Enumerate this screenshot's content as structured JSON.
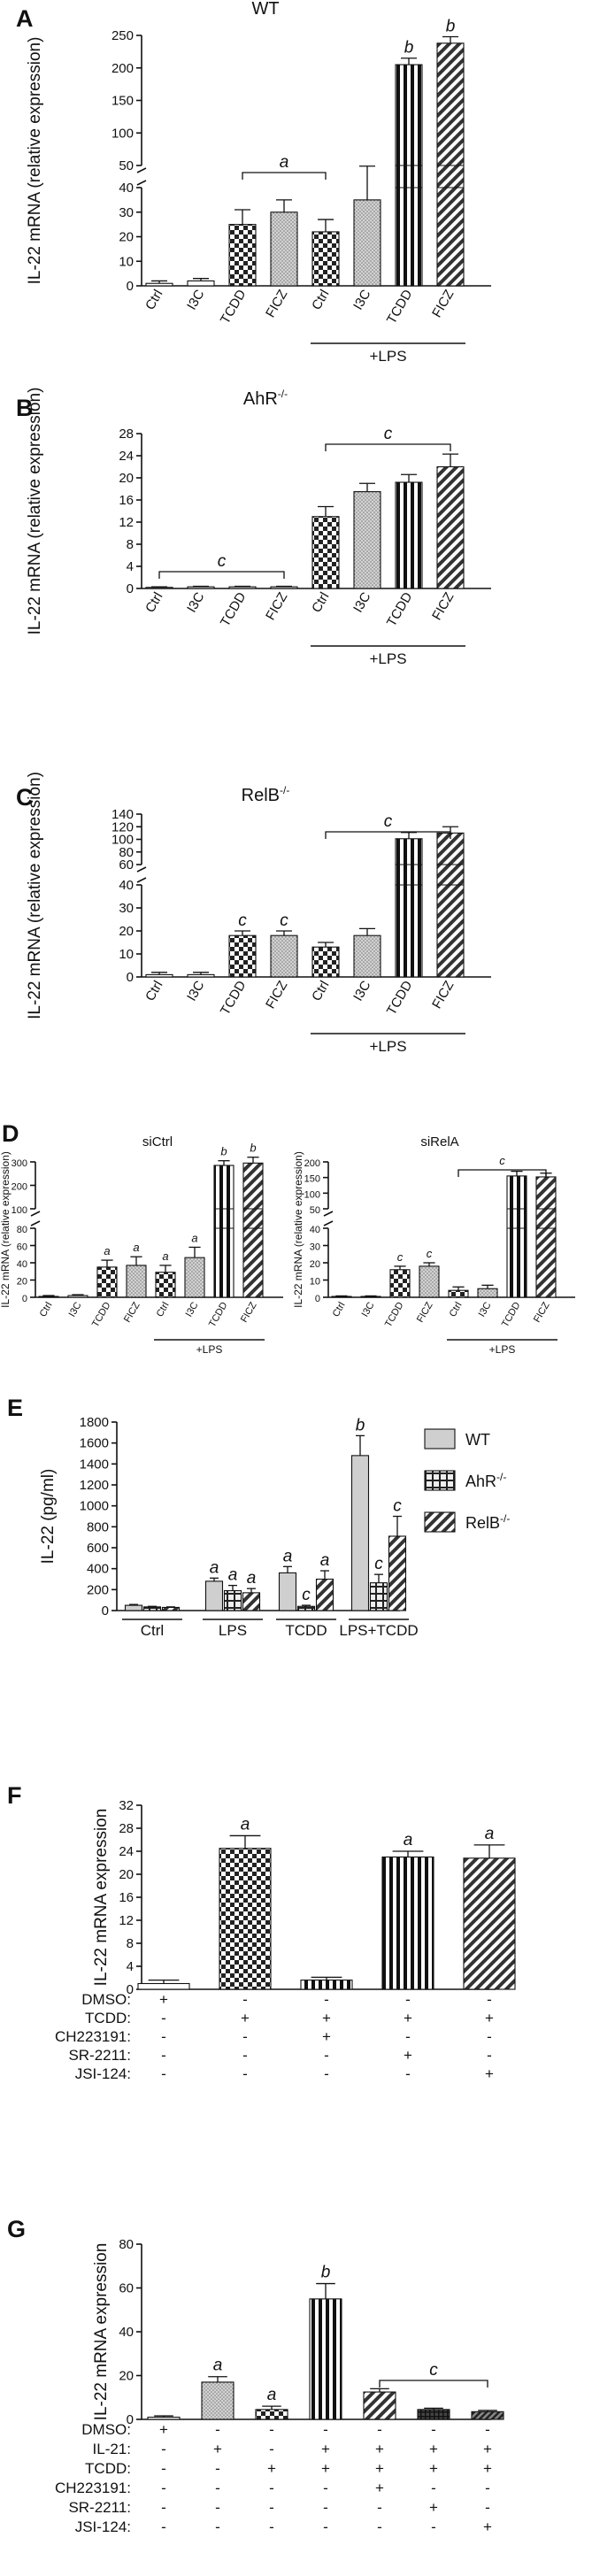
{
  "chart_data": [
    {
      "panel": "A",
      "title": "WT",
      "type": "bar",
      "ylabel": "IL-22 mRNA (relative expression)",
      "axis_break": [
        40,
        50
      ],
      "yticks_lower": [
        0,
        10,
        20,
        30,
        40
      ],
      "yticks_upper": [
        50,
        100,
        150,
        200,
        250
      ],
      "categories": [
        "Ctrl",
        "I3C",
        "TCDD",
        "FICZ",
        "Ctrl",
        "I3C",
        "TCDD",
        "FICZ"
      ],
      "values": [
        1,
        2,
        25,
        30,
        22,
        35,
        205,
        238
      ],
      "errors": [
        1,
        1,
        6,
        5,
        5,
        14,
        10,
        10
      ],
      "patterns": [
        "white",
        "white",
        "check",
        "dots",
        "check",
        "dots",
        "vstripe",
        "diag"
      ],
      "group_label": "+LPS",
      "annotations": [
        {
          "text": "a",
          "type": "bracket",
          "from": 2,
          "to": 4
        },
        {
          "text": "b",
          "bar": 6
        },
        {
          "text": "b",
          "bar": 7
        }
      ]
    },
    {
      "panel": "B",
      "title": "AhR",
      "title_sup": "-/-",
      "type": "bar",
      "ylabel": "IL-22 mRNA (relative expression)",
      "yticks": [
        0,
        4,
        8,
        12,
        16,
        20,
        24,
        28
      ],
      "ylim": [
        0,
        28
      ],
      "categories": [
        "Ctrl",
        "I3C",
        "TCDD",
        "FICZ",
        "Ctrl",
        "I3C",
        "TCDD",
        "FICZ"
      ],
      "values": [
        0.2,
        0.3,
        0.3,
        0.3,
        13,
        17.5,
        19.2,
        22
      ],
      "errors": [
        0.1,
        0.1,
        0.1,
        0.1,
        1.8,
        1.5,
        1.4,
        2.3
      ],
      "patterns": [
        "white",
        "white",
        "white",
        "white",
        "check",
        "dots",
        "vstripe",
        "diag"
      ],
      "group_label": "+LPS",
      "annotations": [
        {
          "text": "c",
          "type": "bracket",
          "from": 0,
          "to": 3
        },
        {
          "text": "c",
          "type": "bracket",
          "from": 4,
          "to": 7
        }
      ]
    },
    {
      "panel": "C",
      "title": "RelB",
      "title_sup": "-/-",
      "type": "bar",
      "ylabel": "IL-22 mRNA (relative expression)",
      "axis_break": [
        40,
        60
      ],
      "yticks_lower": [
        0,
        10,
        20,
        30,
        40
      ],
      "yticks_upper": [
        60,
        80,
        100,
        120,
        140
      ],
      "categories": [
        "Ctrl",
        "I3C",
        "TCDD",
        "FICZ",
        "Ctrl",
        "I3C",
        "TCDD",
        "FICZ"
      ],
      "values": [
        1,
        1,
        18,
        18,
        13,
        18,
        101,
        110
      ],
      "errors": [
        1,
        1,
        2,
        2,
        2,
        3,
        10,
        10
      ],
      "patterns": [
        "white",
        "white",
        "check",
        "dots",
        "check",
        "dots",
        "vstripe",
        "diag"
      ],
      "group_label": "+LPS",
      "annotations": [
        {
          "text": "c",
          "bar": 2
        },
        {
          "text": "c",
          "bar": 3
        },
        {
          "text": "c",
          "type": "bracket",
          "from": 4,
          "to": 7
        }
      ]
    },
    {
      "panel": "D",
      "title": "siCtrl",
      "type": "bar",
      "ylabel": "IL-22 mRNA (relative expression)",
      "axis_break": [
        80,
        100
      ],
      "yticks_lower": [
        0,
        20,
        40,
        60,
        80
      ],
      "yticks_upper": [
        100,
        200,
        300
      ],
      "categories": [
        "Ctrl",
        "I3C",
        "TCDD",
        "FICZ",
        "Ctrl",
        "I3C",
        "TCDD",
        "FICZ"
      ],
      "values": [
        1,
        2,
        35,
        37,
        29,
        46,
        285,
        295
      ],
      "errors": [
        1,
        1,
        8,
        10,
        8,
        12,
        20,
        25
      ],
      "patterns": [
        "white",
        "white",
        "check",
        "dots",
        "check",
        "dots",
        "vstripe",
        "diag"
      ],
      "group_label": "+LPS",
      "annotations": [
        {
          "text": "a",
          "bar": 2
        },
        {
          "text": "a",
          "bar": 3
        },
        {
          "text": "a",
          "bar": 4
        },
        {
          "text": "a",
          "bar": 5
        },
        {
          "text": "b",
          "bar": 6
        },
        {
          "text": "b",
          "bar": 7
        }
      ]
    },
    {
      "panel": "D",
      "title": "siRelA",
      "type": "bar",
      "ylabel": "IL-22 mRNA (relative expression)",
      "axis_break": [
        40,
        50
      ],
      "yticks_lower": [
        0,
        10,
        20,
        30,
        40
      ],
      "yticks_upper": [
        50,
        100,
        150,
        200
      ],
      "categories": [
        "Ctrl",
        "I3C",
        "TCDD",
        "FICZ",
        "Ctrl",
        "I3C",
        "TCDD",
        "FICZ"
      ],
      "values": [
        0.5,
        0.5,
        16,
        18,
        4,
        5,
        155,
        152
      ],
      "errors": [
        0.3,
        0.3,
        2,
        2,
        2,
        2,
        15,
        12
      ],
      "patterns": [
        "white",
        "white",
        "check",
        "dots",
        "check",
        "dots",
        "vstripe",
        "diag"
      ],
      "group_label": "+LPS",
      "annotations": [
        {
          "text": "c",
          "bar": 2
        },
        {
          "text": "c",
          "bar": 3
        },
        {
          "text": "c",
          "type": "bracket",
          "from": 4,
          "to": 7
        }
      ]
    },
    {
      "panel": "E",
      "type": "bar",
      "ylabel": "IL-22 (pg/ml)",
      "yticks": [
        0,
        200,
        400,
        600,
        800,
        1000,
        1200,
        1400,
        1600,
        1800
      ],
      "ylim": [
        0,
        1800
      ],
      "categories": [
        "Ctrl",
        "LPS",
        "TCDD",
        "LPS+TCDD"
      ],
      "series": [
        {
          "name": "WT",
          "pattern": "gray",
          "values": [
            50,
            280,
            360,
            1480
          ],
          "errors": [
            8,
            30,
            60,
            190
          ],
          "sig": [
            "",
            "a",
            "a",
            "b"
          ]
        },
        {
          "name": "AhR",
          "sup": "-/-",
          "pattern": "grid",
          "values": [
            35,
            190,
            40,
            265
          ],
          "errors": [
            5,
            50,
            10,
            80
          ],
          "sig": [
            "",
            "a",
            "c",
            "c"
          ]
        },
        {
          "name": "RelB",
          "sup": "-/-",
          "pattern": "diag",
          "values": [
            30,
            170,
            300,
            710
          ],
          "errors": [
            5,
            40,
            80,
            190
          ],
          "sig": [
            "",
            "a",
            "a",
            "c"
          ]
        }
      ],
      "legend": "right"
    },
    {
      "panel": "F",
      "type": "bar",
      "ylabel": "IL-22 mRNA expression",
      "yticks": [
        0,
        4,
        8,
        12,
        16,
        20,
        24,
        28,
        32
      ],
      "ylim": [
        0,
        32
      ],
      "values": [
        1,
        24.5,
        1.6,
        23,
        22.8
      ],
      "errors": [
        0.6,
        2.2,
        0.5,
        1,
        2.3
      ],
      "patterns": [
        "white",
        "check",
        "vstripe",
        "vstripe",
        "diag"
      ],
      "sig": [
        "",
        "a",
        "",
        "a",
        "a"
      ],
      "treatments": [
        {
          "label": "DMSO:",
          "marks": [
            "+",
            "-",
            "-",
            "-",
            "-"
          ]
        },
        {
          "label": "TCDD:",
          "marks": [
            "-",
            "+",
            "+",
            "+",
            "+"
          ]
        },
        {
          "label": "CH223191:",
          "marks": [
            "-",
            "-",
            "+",
            "-",
            "-"
          ]
        },
        {
          "label": "SR-2211:",
          "marks": [
            "-",
            "-",
            "-",
            "+",
            "-"
          ]
        },
        {
          "label": "JSI-124:",
          "marks": [
            "-",
            "-",
            "-",
            "-",
            "+"
          ]
        }
      ]
    },
    {
      "panel": "G",
      "type": "bar",
      "ylabel": "IL-22 mRNA expression",
      "yticks": [
        0,
        20,
        40,
        60,
        80
      ],
      "ylim": [
        0,
        80
      ],
      "values": [
        1,
        17,
        4.5,
        55,
        12.5,
        4.5,
        3.5
      ],
      "errors": [
        0.6,
        2.5,
        1.5,
        7,
        1.5,
        0.6,
        0.6
      ],
      "patterns": [
        "white",
        "dots",
        "check",
        "vstripe",
        "diag",
        "darkgrid",
        "darkdiag"
      ],
      "sig": [
        "",
        "a",
        "a",
        "b",
        "",
        "",
        ""
      ],
      "annotations": [
        {
          "text": "c",
          "type": "bracket",
          "from": 4,
          "to": 6
        }
      ],
      "treatments": [
        {
          "label": "DMSO:",
          "marks": [
            "+",
            "-",
            "-",
            "-",
            "-",
            "-",
            "-"
          ]
        },
        {
          "label": "IL-21:",
          "marks": [
            "-",
            "+",
            "-",
            "+",
            "+",
            "+",
            "+"
          ]
        },
        {
          "label": "TCDD:",
          "marks": [
            "-",
            "-",
            "+",
            "+",
            "+",
            "+",
            "+"
          ]
        },
        {
          "label": "CH223191:",
          "marks": [
            "-",
            "-",
            "-",
            "-",
            "+",
            "-",
            "-"
          ]
        },
        {
          "label": "SR-2211:",
          "marks": [
            "-",
            "-",
            "-",
            "-",
            "-",
            "+",
            "-"
          ]
        },
        {
          "label": "JSI-124:",
          "marks": [
            "-",
            "-",
            "-",
            "-",
            "-",
            "-",
            "+"
          ]
        }
      ]
    }
  ]
}
